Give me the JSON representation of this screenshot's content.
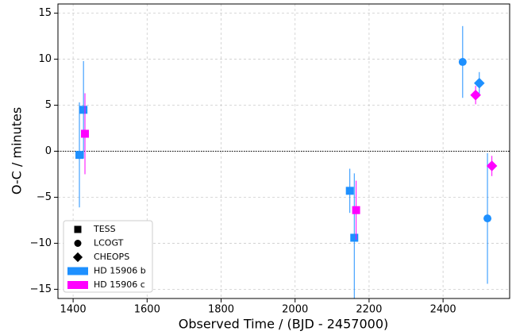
{
  "chart_data": {
    "type": "scatter",
    "x_label": "Observed Time / (BJD - 2457000)",
    "y_label": "O-C / minutes",
    "xlim": [
      1359,
      2580
    ],
    "ylim": [
      -16,
      16
    ],
    "xticks": [
      1400,
      1600,
      1800,
      2000,
      2200,
      2400
    ],
    "yticks": [
      {
        "value": -15,
        "label": "−15"
      },
      {
        "value": -10,
        "label": "−10"
      },
      {
        "value": -5,
        "label": "−5"
      },
      0,
      5,
      10,
      15
    ],
    "grid": true,
    "reference_line": 0,
    "legend_position": "lower left",
    "markers": [
      {
        "name": "TESS",
        "shape": "square"
      },
      {
        "name": "LCOGT",
        "shape": "circle"
      },
      {
        "name": "CHEOPS",
        "shape": "diamond"
      }
    ],
    "series": [
      {
        "name": "HD 15906 b",
        "color": "#1e90ff",
        "x": [
          1417,
          1428,
          2148,
          2160,
          2453,
          2520,
          2498
        ],
        "values": [
          -0.4,
          4.5,
          -4.3,
          -9.4,
          9.7,
          -7.3,
          7.4
        ],
        "errors": [
          5.7,
          5.3,
          2.4,
          7.0,
          3.9,
          7.1,
          1.2
        ],
        "markers": [
          "square",
          "square",
          "square",
          "square",
          "circle",
          "circle",
          "diamond"
        ]
      },
      {
        "name": "HD 15906 c",
        "color": "#ff00ff",
        "x": [
          1432,
          2165,
          2488,
          2532
        ],
        "values": [
          1.9,
          -6.4,
          6.1,
          -1.6
        ],
        "errors": [
          4.4,
          3.2,
          1.0,
          1.1
        ],
        "markers": [
          "square",
          "square",
          "diamond",
          "diamond"
        ]
      }
    ]
  }
}
